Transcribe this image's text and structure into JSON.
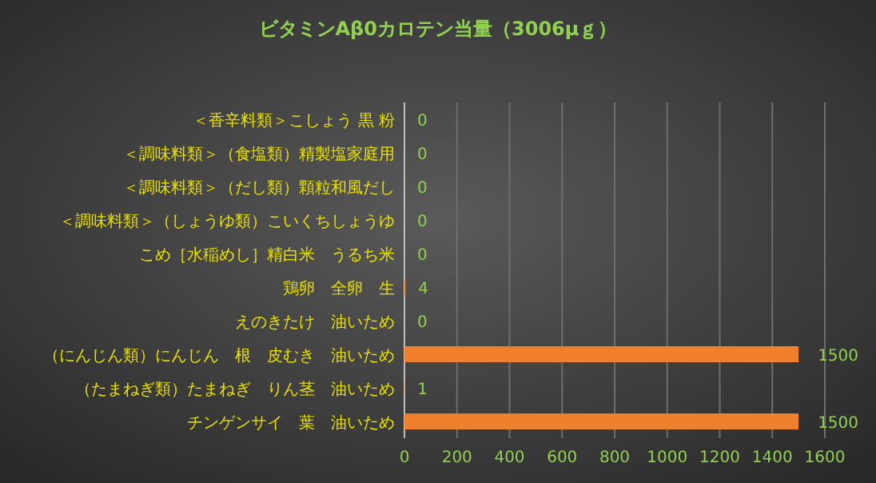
{
  "chart_data": {
    "type": "bar",
    "orientation": "horizontal",
    "title": "ビタミンAβ0カロテン当量（3006μｇ）",
    "categories": [
      "＜香辛料類＞こしょう 黒 粉",
      "＜調味料類＞（食塩類）精製塩家庭用",
      "＜調味料類＞（だし類）顆粒和風だし",
      "＜調味料類＞（しょうゆ類）こいくちしょうゆ",
      "こめ［水稲めし］精白米　うるち米",
      "鶏卵　全卵　生",
      "えのきたけ　油いため",
      "（にんじん類）にんじん　根　皮むき　油いため",
      "（たまねぎ類）たまねぎ　りん茎　油いため",
      "チンゲンサイ　葉　油いため"
    ],
    "values": [
      0,
      0,
      0,
      0,
      0,
      4,
      0,
      1500,
      1,
      1500
    ],
    "color": "#f07f2e",
    "xlim": [
      0,
      1600
    ],
    "xticks": [
      0,
      200,
      400,
      600,
      800,
      1000,
      1200,
      1400,
      1600
    ],
    "grid": "x",
    "data_labels": true
  }
}
